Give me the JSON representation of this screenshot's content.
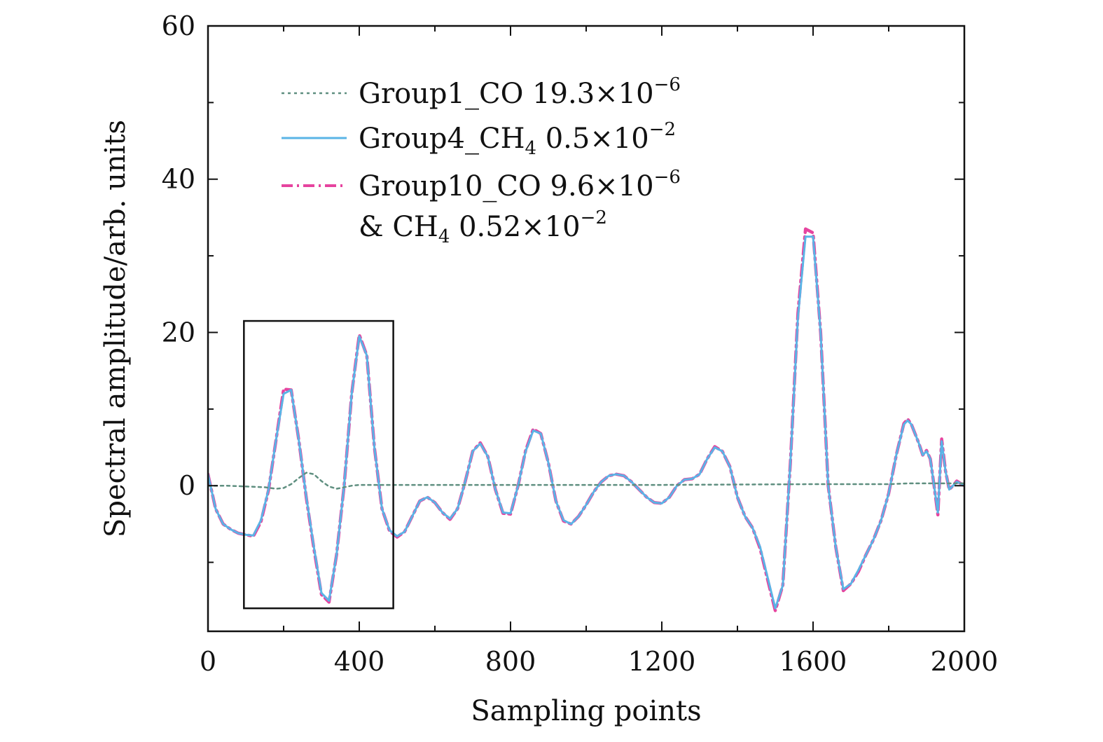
{
  "chart_data": {
    "type": "line",
    "title": "",
    "xlabel": "Sampling points",
    "ylabel": "Spectral amplitude/arb. units",
    "xlim": [
      0,
      2000
    ],
    "ylim": [
      -19,
      60
    ],
    "xticks": [
      0,
      400,
      800,
      1200,
      1600,
      2000
    ],
    "yticks": [
      0,
      20,
      40,
      60
    ],
    "grid": false,
    "legend_position": "top-left",
    "series": [
      {
        "name": "Group1_CO 19.3×10⁻⁶",
        "label_parts": [
          "Group1_CO 19.3×10",
          "−6"
        ],
        "color": "#5f8f80",
        "dash": "dotted",
        "x": [
          0,
          50,
          100,
          150,
          180,
          200,
          220,
          240,
          260,
          280,
          300,
          320,
          340,
          360,
          380,
          400,
          500,
          800,
          1200,
          1600,
          1800,
          1850,
          1900,
          2000
        ],
        "y": [
          0,
          0,
          -0.1,
          -0.2,
          -0.4,
          -0.3,
          0.2,
          1.0,
          1.7,
          1.5,
          0.6,
          -0.1,
          -0.4,
          -0.2,
          0,
          0.1,
          0.1,
          0.1,
          0.1,
          0.2,
          0.2,
          0.3,
          0.3,
          0.3
        ]
      },
      {
        "name": "Group4_CH₄ 0.5×10⁻²",
        "label_parts": [
          "Group4_CH",
          "4",
          " 0.5×10",
          "−2"
        ],
        "color": "#5ab4e6",
        "dash": "solid",
        "x": [
          0,
          20,
          40,
          60,
          80,
          100,
          120,
          140,
          160,
          180,
          200,
          220,
          240,
          260,
          280,
          300,
          320,
          340,
          360,
          380,
          400,
          420,
          440,
          460,
          480,
          500,
          520,
          540,
          560,
          580,
          600,
          620,
          640,
          660,
          680,
          700,
          720,
          740,
          760,
          780,
          800,
          820,
          840,
          860,
          880,
          900,
          920,
          940,
          960,
          980,
          1000,
          1020,
          1040,
          1060,
          1080,
          1100,
          1120,
          1140,
          1160,
          1180,
          1200,
          1220,
          1240,
          1260,
          1280,
          1300,
          1320,
          1340,
          1360,
          1380,
          1400,
          1420,
          1440,
          1460,
          1480,
          1500,
          1520,
          1540,
          1560,
          1580,
          1600,
          1620,
          1640,
          1660,
          1680,
          1700,
          1720,
          1740,
          1760,
          1780,
          1800,
          1820,
          1840,
          1850,
          1860,
          1880,
          1890,
          1900,
          1910,
          1920,
          1930,
          1940,
          1950,
          1960,
          1970,
          1980,
          1990,
          2000
        ],
        "y": [
          1.5,
          -3,
          -5,
          -5.7,
          -6.2,
          -6.4,
          -6.5,
          -4.5,
          -0.5,
          6,
          12,
          12.5,
          6,
          -1.5,
          -8,
          -14,
          -15,
          -9,
          0,
          12,
          19.5,
          17,
          5,
          -3,
          -5.8,
          -6.6,
          -6,
          -4,
          -2,
          -1.5,
          -2.2,
          -3.5,
          -4.3,
          -3,
          0.5,
          4.5,
          5.5,
          3.8,
          -0.5,
          -3.5,
          -3.6,
          0,
          4.5,
          7.2,
          6.8,
          3,
          -2,
          -4.5,
          -5,
          -4,
          -2.5,
          -0.8,
          0.5,
          1.3,
          1.5,
          1.3,
          0.5,
          -0.5,
          -1.5,
          -2.2,
          -2.3,
          -1.5,
          0,
          0.8,
          0.9,
          1.5,
          3.5,
          5,
          4.5,
          2.5,
          -1.5,
          -4,
          -5.5,
          -8,
          -12,
          -16,
          -13,
          3,
          22,
          32.5,
          32.5,
          20,
          0,
          -8,
          -13.5,
          -12.8,
          -11,
          -9,
          -7,
          -4.5,
          -1,
          4,
          8,
          8.5,
          8,
          5.5,
          4,
          4.5,
          3.5,
          0,
          -3.5,
          5.8,
          2,
          -0.5,
          0,
          0.5,
          0.3,
          0
        ],
        "note": ""
      },
      {
        "name": "Group10_CO 9.6×10⁻⁶ & CH₄ 0.52×10⁻²",
        "label_parts": [
          "Group10_CO 9.6×10",
          "−6",
          "& CH",
          "4",
          " 0.52×10",
          "−2"
        ],
        "color": "#e6449f",
        "dash": "dash-dot",
        "x": [
          0,
          20,
          40,
          60,
          80,
          100,
          120,
          140,
          160,
          180,
          200,
          220,
          240,
          260,
          280,
          300,
          320,
          340,
          360,
          380,
          400,
          420,
          440,
          460,
          480,
          500,
          520,
          540,
          560,
          580,
          600,
          620,
          640,
          660,
          680,
          700,
          720,
          740,
          760,
          780,
          800,
          820,
          840,
          860,
          880,
          900,
          920,
          940,
          960,
          980,
          1000,
          1020,
          1040,
          1060,
          1080,
          1100,
          1120,
          1140,
          1160,
          1180,
          1200,
          1220,
          1240,
          1260,
          1280,
          1300,
          1320,
          1340,
          1360,
          1380,
          1400,
          1420,
          1440,
          1460,
          1480,
          1500,
          1520,
          1540,
          1560,
          1580,
          1600,
          1620,
          1640,
          1660,
          1680,
          1700,
          1720,
          1740,
          1760,
          1780,
          1800,
          1820,
          1840,
          1850,
          1860,
          1880,
          1890,
          1900,
          1910,
          1920,
          1930,
          1940,
          1950,
          1960,
          1970,
          1980,
          1990,
          2000
        ],
        "y": [
          1.5,
          -3,
          -5,
          -5.7,
          -6.2,
          -6.4,
          -6.6,
          -4.7,
          -0.6,
          6,
          12.6,
          12.5,
          6,
          -1.6,
          -8.2,
          -14.2,
          -15.2,
          -9,
          0,
          12,
          19.7,
          17,
          5,
          -3,
          -5.9,
          -6.7,
          -6,
          -4,
          -2,
          -1.5,
          -2.2,
          -3.5,
          -4.4,
          -3,
          0.5,
          4.5,
          5.6,
          3.8,
          -0.5,
          -3.6,
          -3.7,
          0,
          4.6,
          7.4,
          6.8,
          3,
          -2,
          -4.6,
          -5,
          -4,
          -2.5,
          -0.8,
          0.5,
          1.3,
          1.5,
          1.3,
          0.5,
          -0.5,
          -1.5,
          -2.2,
          -2.3,
          -1.5,
          0,
          0.8,
          0.9,
          1.5,
          3.5,
          5.1,
          4.5,
          2.5,
          -1.5,
          -4,
          -5.5,
          -8.2,
          -12.3,
          -16.3,
          -13,
          3,
          22.5,
          33.5,
          33,
          20,
          0,
          -8,
          -13.7,
          -12.8,
          -11.2,
          -9,
          -7,
          -4.5,
          -1,
          4,
          8.1,
          8.7,
          8,
          5.5,
          4,
          4.6,
          3.5,
          0,
          -3.8,
          6.1,
          2,
          -0.5,
          0,
          0.6,
          0.3,
          0
        ]
      }
    ],
    "annotations": [
      {
        "type": "box",
        "x_range": [
          95,
          490
        ],
        "y_range": [
          -16,
          21.5
        ]
      }
    ]
  }
}
